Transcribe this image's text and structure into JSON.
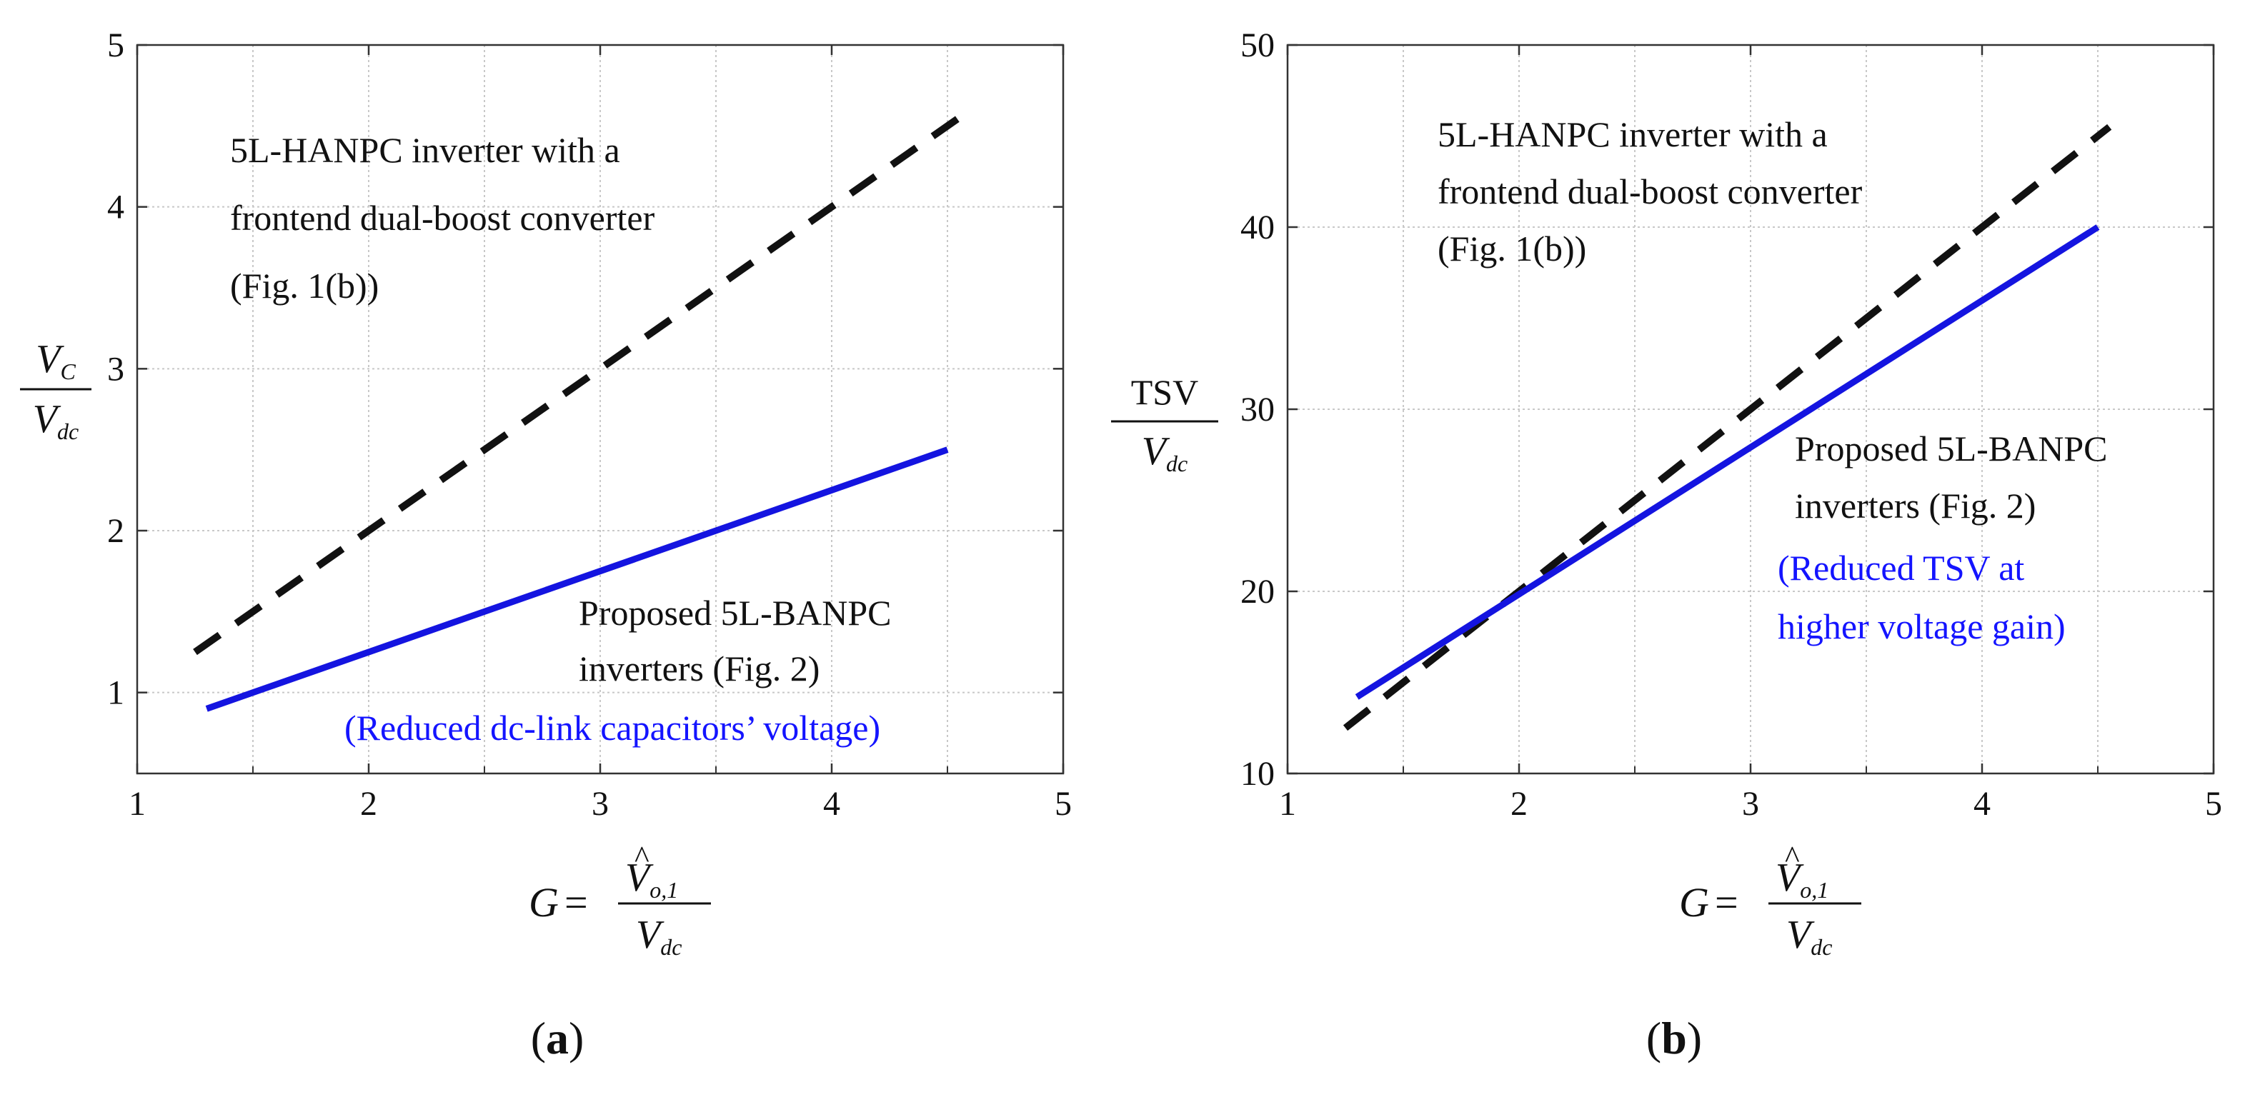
{
  "chart_data": [
    {
      "type": "line",
      "panel_label": "(a)",
      "x": [
        1.3,
        4.5
      ],
      "xlim": [
        1,
        5
      ],
      "ylim": [
        0.5,
        5
      ],
      "xticks": [
        "1",
        "2",
        "3",
        "4",
        "5"
      ],
      "yticks": [
        "1",
        "2",
        "3",
        "4",
        "5"
      ],
      "grid": true,
      "xlabel": {
        "lhs": "G",
        "eq": "=",
        "num_main": "V",
        "num_hat": "^",
        "num_sub": "o,1",
        "den_main": "V",
        "den_sub": "dc"
      },
      "ylabel": {
        "num_main": "V",
        "num_sub": "C",
        "den_main": "V",
        "den_sub": "dc"
      },
      "series": [
        {
          "name_lines": [
            "5L-HANPC inverter with a",
            "frontend dual-boost converter",
            "(Fig. 1(b))"
          ],
          "note": "",
          "x": [
            1.25,
            4.55
          ],
          "values": [
            1.25,
            4.55
          ],
          "style": "dashed",
          "color": "#111111"
        },
        {
          "name_lines": [
            "Proposed 5L-BANPC",
            "inverters (Fig. 2)"
          ],
          "note_lines": [
            "(Reduced dc-link capacitors’ voltage)"
          ],
          "x": [
            1.3,
            4.5
          ],
          "values": [
            0.9,
            2.5
          ],
          "style": "solid",
          "color": "#1414e0"
        }
      ]
    },
    {
      "type": "line",
      "panel_label": "(b)",
      "xlim": [
        1,
        5
      ],
      "ylim": [
        10,
        50
      ],
      "xticks": [
        "1",
        "2",
        "3",
        "4",
        "5"
      ],
      "yticks": [
        "10",
        "20",
        "30",
        "40",
        "50"
      ],
      "grid": true,
      "xlabel": {
        "lhs": "G",
        "eq": "=",
        "num_main": "V",
        "num_hat": "^",
        "num_sub": "o,1",
        "den_main": "V",
        "den_sub": "dc"
      },
      "ylabel": {
        "num_main": "TSV",
        "num_sub": "",
        "den_main": "V",
        "den_sub": "dc"
      },
      "series": [
        {
          "name_lines": [
            "5L-HANPC inverter with a",
            "frontend dual-boost converter",
            "(Fig. 1(b))"
          ],
          "x": [
            1.25,
            4.55
          ],
          "values": [
            12.5,
            45.5
          ],
          "style": "dashed",
          "color": "#111111"
        },
        {
          "name_lines": [
            "Proposed 5L-BANPC",
            " inverters (Fig. 2)"
          ],
          "note_lines": [
            "(Reduced TSV at",
            "higher voltage gain)"
          ],
          "x": [
            1.3,
            4.5
          ],
          "values": [
            14.2,
            40.0
          ],
          "style": "solid",
          "color": "#1414e0"
        }
      ]
    }
  ]
}
